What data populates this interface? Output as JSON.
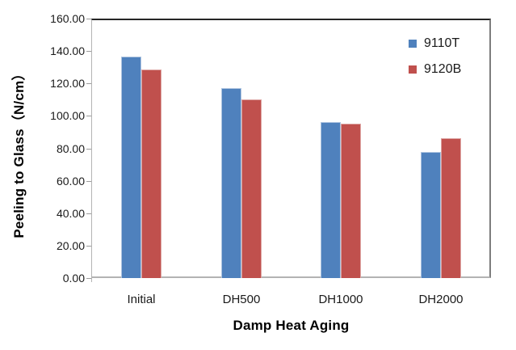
{
  "chart_data": {
    "type": "bar",
    "title": "",
    "xlabel": "Damp Heat Aging",
    "ylabel": "Peeling to Glass（N/cm）",
    "categories": [
      "Initial",
      "DH500",
      "DH1000",
      "DH2000"
    ],
    "series": [
      {
        "name": "9110T",
        "color": "#4f81bd",
        "edge_color": "#aec4e0",
        "values": [
          136.5,
          117.0,
          96.0,
          78.0
        ]
      },
      {
        "name": "9120B",
        "color": "#c0504d",
        "edge_color": "#ddA4a2",
        "values": [
          128.5,
          110.0,
          95.0,
          86.0
        ]
      }
    ],
    "ylim": [
      0,
      160
    ],
    "ytick_step": 20,
    "ytick_labels": [
      "0.00",
      "20.00",
      "40.00",
      "60.00",
      "80.00",
      "100.00",
      "120.00",
      "140.00",
      "160.00"
    ],
    "grid": false,
    "legend_position": "top-right",
    "legend_items": [
      "9110T",
      "9120B"
    ]
  }
}
